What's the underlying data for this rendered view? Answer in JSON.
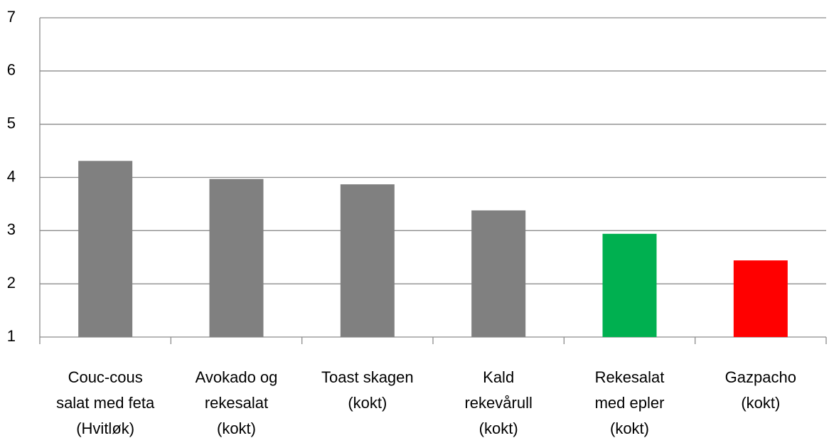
{
  "chart_data": {
    "type": "bar",
    "categories": [
      [
        "Couc-cous",
        "salat med feta",
        "(Hvitløk)"
      ],
      [
        "Avokado og",
        "rekesalat",
        "(kokt)"
      ],
      [
        "Toast skagen",
        "(kokt)"
      ],
      [
        "Kald",
        "rekevårull",
        "(kokt)"
      ],
      [
        "Rekesalat",
        "med epler",
        "(kokt)"
      ],
      [
        "Gazpacho",
        "(kokt)"
      ]
    ],
    "values": [
      4.31,
      3.97,
      3.87,
      3.38,
      2.94,
      2.44
    ],
    "colors": [
      "#808080",
      "#808080",
      "#808080",
      "#808080",
      "#00b050",
      "#ff0000"
    ],
    "ylim": [
      1,
      7
    ],
    "yticks": [
      1,
      2,
      3,
      4,
      5,
      6,
      7
    ],
    "grid": true
  }
}
